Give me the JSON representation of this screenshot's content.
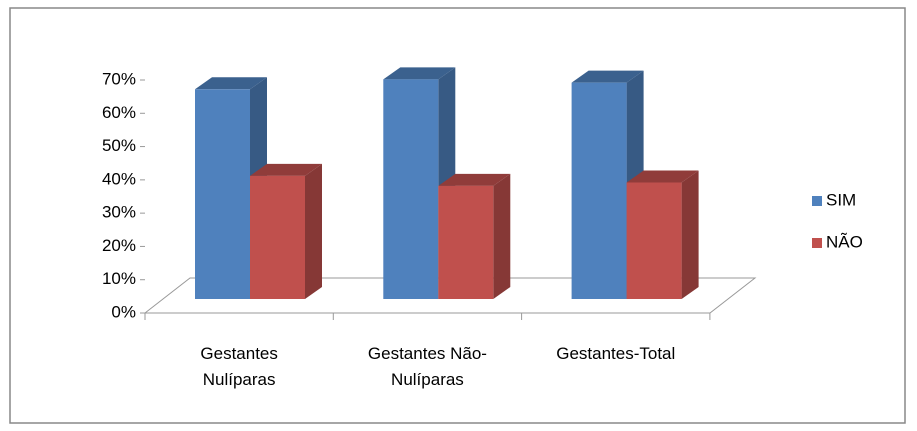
{
  "chart_data": {
    "type": "bar3d",
    "categories": [
      "Gestantes Nulíparas",
      "Gestantes Não-Nulíparas",
      "Gestantes-Total"
    ],
    "series": [
      {
        "name": "SIM",
        "color": "#4f81bd",
        "values": [
          63,
          66,
          65
        ]
      },
      {
        "name": "NÃO",
        "color": "#c0504d",
        "values": [
          37,
          34,
          35
        ]
      }
    ],
    "ylim": [
      0,
      70
    ],
    "yticks": [
      {
        "value": 0,
        "label": "0%"
      },
      {
        "value": 10,
        "label": "10%"
      },
      {
        "value": 20,
        "label": "20%"
      },
      {
        "value": 30,
        "label": "30%"
      },
      {
        "value": 40,
        "label": "40%"
      },
      {
        "value": 50,
        "label": "50%"
      },
      {
        "value": 60,
        "label": "60%"
      },
      {
        "value": 70,
        "label": "70%"
      }
    ],
    "legend": "right"
  }
}
